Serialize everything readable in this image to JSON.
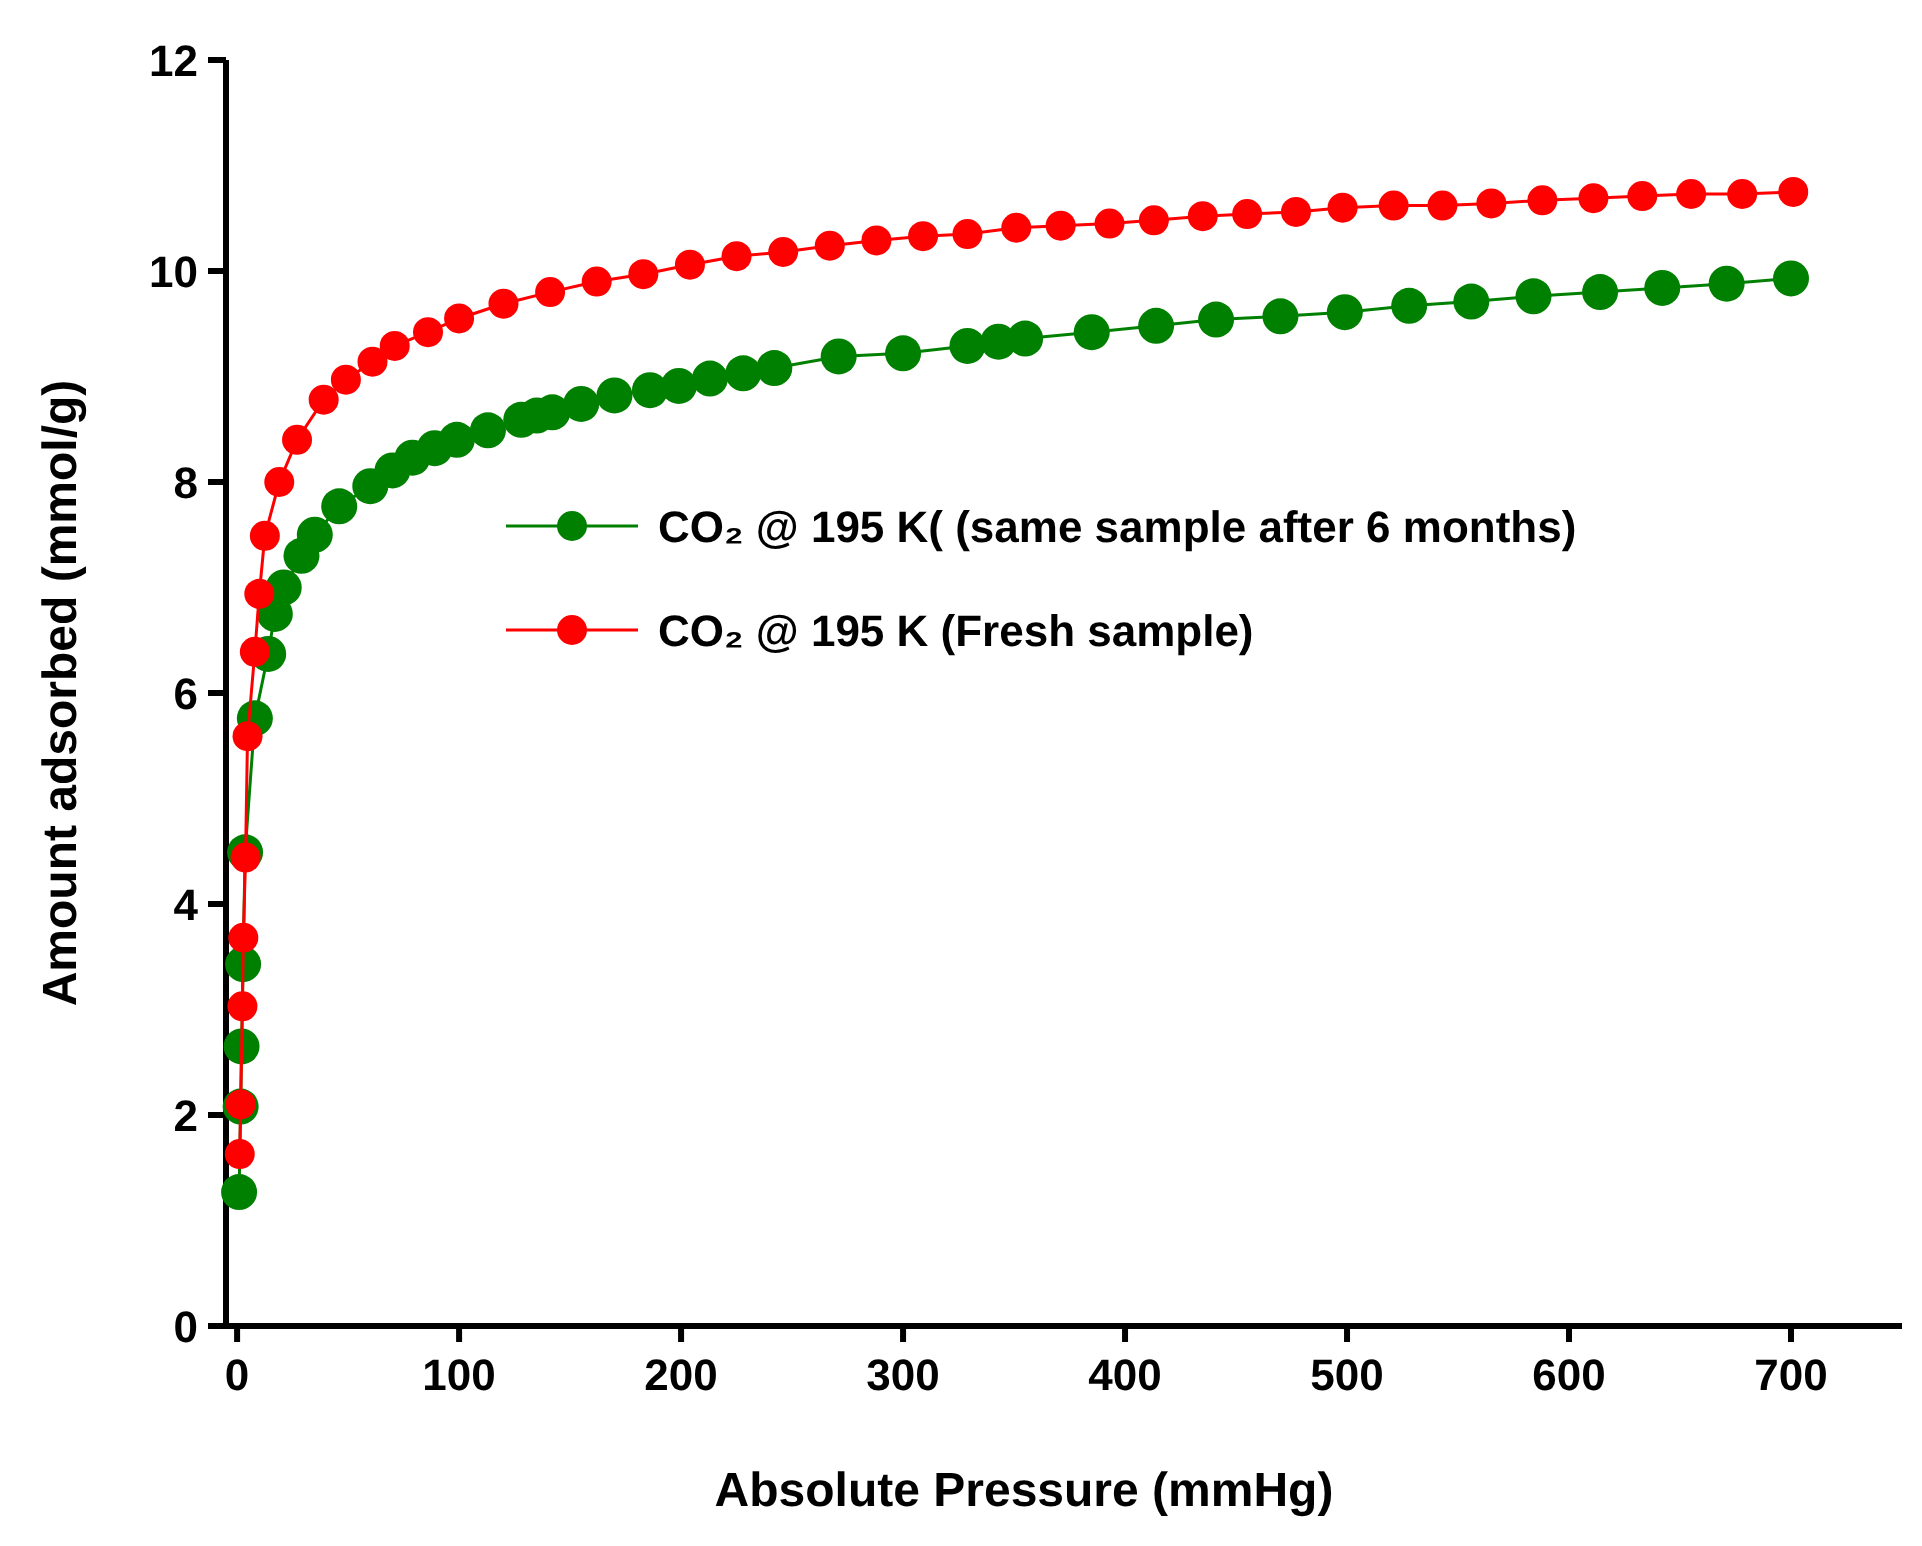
{
  "chart_data": {
    "type": "line",
    "xlabel": "Absolute Pressure (mmHg)",
    "ylabel": "Amount adsorbed (mmol/g)",
    "xlim": [
      -5,
      750
    ],
    "ylim": [
      0,
      12
    ],
    "xticks": [
      0,
      100,
      200,
      300,
      400,
      500,
      600,
      700
    ],
    "yticks": [
      0,
      2,
      4,
      6,
      8,
      10,
      12
    ],
    "grid": false,
    "legend": "center",
    "marker": "circle",
    "line_style": "solid",
    "series": [
      {
        "name": "CO₂ @ 195 K( (same sample after 6 months)",
        "color": "#008000",
        "x": [
          0.9,
          1.6,
          2,
          2.7,
          3.6,
          8,
          14,
          17,
          21,
          29,
          35,
          46,
          60,
          70,
          79,
          89,
          99,
          113,
          128,
          135,
          142,
          155,
          170,
          186,
          199,
          213,
          228,
          242,
          271,
          300,
          329,
          343,
          355,
          385,
          414,
          441,
          470,
          499,
          528,
          556,
          584,
          614,
          642,
          671,
          700
        ],
        "values": [
          1.27,
          2.08,
          2.65,
          3.43,
          4.49,
          5.76,
          6.37,
          6.75,
          7.0,
          7.3,
          7.5,
          7.77,
          7.96,
          8.11,
          8.23,
          8.32,
          8.4,
          8.49,
          8.59,
          8.63,
          8.66,
          8.74,
          8.82,
          8.87,
          8.91,
          8.98,
          9.03,
          9.08,
          9.19,
          9.22,
          9.29,
          9.33,
          9.36,
          9.42,
          9.48,
          9.54,
          9.57,
          9.61,
          9.67,
          9.71,
          9.76,
          9.8,
          9.84,
          9.88,
          9.93
        ]
      },
      {
        "name": "CO₂ @ 195 K (Fresh sample)",
        "color": "#ff0000",
        "x": [
          1.2,
          1.6,
          2.4,
          2.8,
          3.8,
          4.7,
          8,
          10,
          12.5,
          19,
          27,
          39,
          49,
          61,
          71,
          86,
          100,
          120,
          141,
          162,
          183,
          204,
          225,
          246,
          267,
          288,
          309,
          329,
          351,
          371,
          393,
          413,
          435,
          455,
          477,
          498,
          521,
          543,
          565,
          588,
          611,
          633,
          655,
          678,
          701
        ],
        "values": [
          1.63,
          2.1,
          3.03,
          3.68,
          4.44,
          5.59,
          6.39,
          6.94,
          7.49,
          8.0,
          8.4,
          8.78,
          8.97,
          9.14,
          9.29,
          9.42,
          9.55,
          9.69,
          9.8,
          9.9,
          9.97,
          10.06,
          10.14,
          10.18,
          10.24,
          10.29,
          10.33,
          10.35,
          10.41,
          10.43,
          10.45,
          10.48,
          10.52,
          10.54,
          10.56,
          10.6,
          10.62,
          10.62,
          10.64,
          10.67,
          10.69,
          10.71,
          10.73,
          10.73,
          10.75
        ]
      }
    ]
  }
}
